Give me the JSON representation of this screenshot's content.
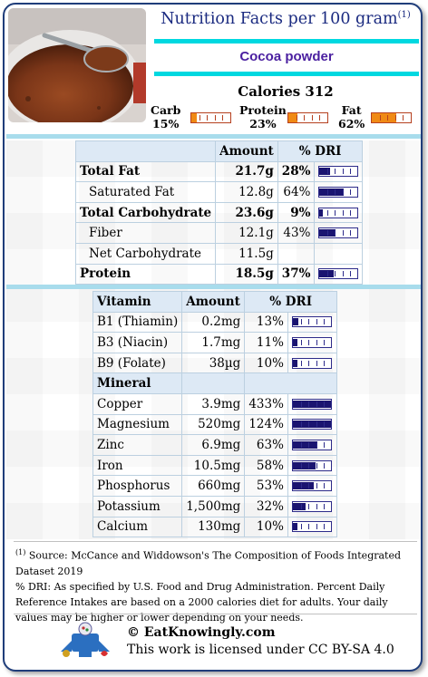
{
  "header": {
    "title": "Nutrition Facts per 100 gram",
    "title_ref": "(1)",
    "food_name": "Cocoa powder",
    "calories": "Calories 312"
  },
  "macros": [
    {
      "label": "Carb",
      "pct": "15%",
      "value": 0.15
    },
    {
      "label": "Protein",
      "pct": "23%",
      "value": 0.23
    },
    {
      "label": "Fat",
      "pct": "62%",
      "value": 0.62
    }
  ],
  "nutrients": {
    "headers": [
      "",
      "Amount",
      "% DRI"
    ],
    "rows": [
      {
        "name": "Total Fat",
        "amount": "21.7g",
        "dri": "28%",
        "fill": 0.28,
        "bold": true,
        "indent": false
      },
      {
        "name": "Saturated Fat",
        "amount": "12.8g",
        "dri": "64%",
        "fill": 0.64,
        "bold": false,
        "indent": true
      },
      {
        "name": "Total Carbohydrate",
        "amount": "23.6g",
        "dri": "9%",
        "fill": 0.09,
        "bold": true,
        "indent": false
      },
      {
        "name": "Fiber",
        "amount": "12.1g",
        "dri": "43%",
        "fill": 0.43,
        "bold": false,
        "indent": true
      },
      {
        "name": "Net Carbohydrate",
        "amount": "11.5g",
        "dri": "",
        "fill": null,
        "bold": false,
        "indent": true
      },
      {
        "name": "Protein",
        "amount": "18.5g",
        "dri": "37%",
        "fill": 0.37,
        "bold": true,
        "indent": false
      }
    ]
  },
  "vitamins": {
    "headers": [
      "Vitamin",
      "Amount",
      "% DRI"
    ],
    "rows": [
      {
        "name": "B1 (Thiamin)",
        "amount": "0.2mg",
        "dri": "13%",
        "fill": 0.13
      },
      {
        "name": "B3 (Niacin)",
        "amount": "1.7mg",
        "dri": "11%",
        "fill": 0.11
      },
      {
        "name": "B9 (Folate)",
        "amount": "38µg",
        "dri": "10%",
        "fill": 0.1
      }
    ]
  },
  "minerals": {
    "header": "Mineral",
    "rows": [
      {
        "name": "Copper",
        "amount": "3.9mg",
        "dri": "433%",
        "fill": 1.0
      },
      {
        "name": "Magnesium",
        "amount": "520mg",
        "dri": "124%",
        "fill": 1.0
      },
      {
        "name": "Zinc",
        "amount": "6.9mg",
        "dri": "63%",
        "fill": 0.63
      },
      {
        "name": "Iron",
        "amount": "10.5mg",
        "dri": "58%",
        "fill": 0.58
      },
      {
        "name": "Phosphorus",
        "amount": "660mg",
        "dri": "53%",
        "fill": 0.53
      },
      {
        "name": "Potassium",
        "amount": "1,500mg",
        "dri": "32%",
        "fill": 0.32
      },
      {
        "name": "Calcium",
        "amount": "130mg",
        "dri": "10%",
        "fill": 0.1
      }
    ]
  },
  "footnote": {
    "ref": "(1)",
    "source": " Source: McCance and Widdowson's The Composition of Foods Integrated Dataset 2019",
    "dri_note": "% DRI: As specified by U.S. Food and Drug Administration. Percent Daily Reference Intakes are based on a 2000 calories diet for adults. Your daily values may be higher or lower depending on your needs."
  },
  "footer": {
    "site": "© EatKnowingly.com",
    "license": "This work is licensed under CC BY-SA 4.0"
  },
  "colors": {
    "accent_cyan": "#00d8e0",
    "title_blue": "#1a2a80",
    "name_purple": "#4a1fa0",
    "macro_orange": "#f08a15",
    "dri_navy": "#1a1470"
  }
}
